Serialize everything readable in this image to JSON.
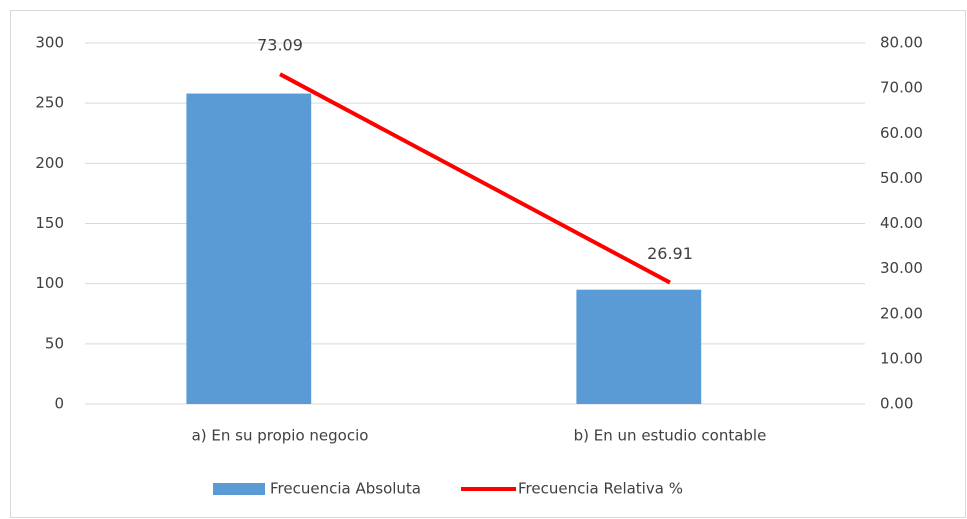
{
  "chart_data": {
    "type": "bar",
    "categories": [
      "a) En su propio negocio",
      "b) En un estudio contable"
    ],
    "series": [
      {
        "name": "Frecuencia Absoluta",
        "type": "bar",
        "color": "#5b9bd5",
        "values": [
          258,
          95
        ]
      },
      {
        "name": "Frecuencia Relativa %",
        "type": "line",
        "axis": "y2",
        "color": "#ff0000",
        "values": [
          73.09,
          26.91
        ]
      }
    ],
    "ylim": [
      0,
      300
    ],
    "yticks": [
      0,
      50,
      100,
      150,
      200,
      250,
      300
    ],
    "y2lim": [
      0,
      80
    ],
    "y2ticks": [
      {
        "value": 0,
        "label": "0.00"
      },
      {
        "value": 10,
        "label": "10.00"
      },
      {
        "value": 20,
        "label": "20.00"
      },
      {
        "value": 30,
        "label": "30.00"
      },
      {
        "value": 40,
        "label": "40.00"
      },
      {
        "value": 50,
        "label": "50.00"
      },
      {
        "value": 60,
        "label": "60.00"
      },
      {
        "value": 70,
        "label": "70.00"
      },
      {
        "value": 80,
        "label": "80.00"
      }
    ],
    "grid": true,
    "legend": "bottom"
  }
}
